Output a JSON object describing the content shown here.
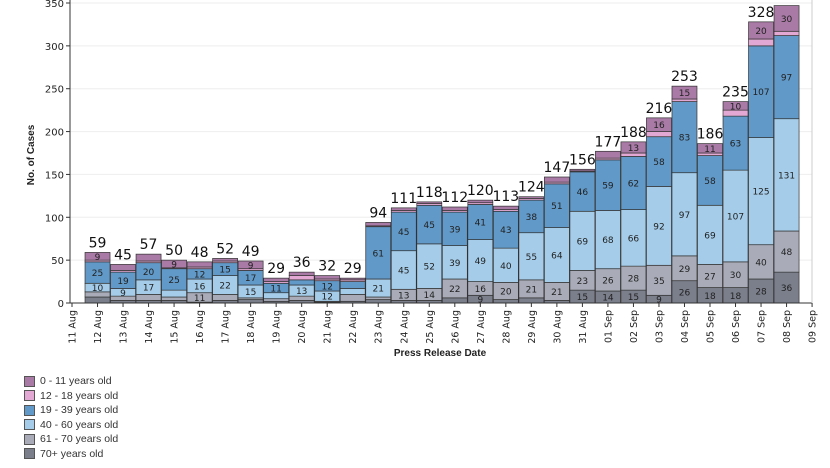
{
  "chart_data": {
    "type": "bar",
    "stacked": true,
    "title": "",
    "xlabel": "Press Release Date",
    "ylabel": "No. of Cases",
    "ylim": [
      0,
      350
    ],
    "yticks": [
      0,
      50,
      100,
      150,
      200,
      250,
      300,
      350
    ],
    "xtick_labels": [
      "11 Aug",
      "12 Aug",
      "13 Aug",
      "14 Aug",
      "15 Aug",
      "16 Aug",
      "17 Aug",
      "18 Aug",
      "19 Aug",
      "20 Aug",
      "21 Aug",
      "22 Aug",
      "23 Aug",
      "24 Aug",
      "25 Aug",
      "26 Aug",
      "27 Aug",
      "28 Aug",
      "29 Aug",
      "30 Aug",
      "31 Aug",
      "01 Sep",
      "02 Sep",
      "03 Sep",
      "04 Sep",
      "05 Sep",
      "06 Sep",
      "07 Sep",
      "08 Sep",
      "09 Sep"
    ],
    "categories": [
      "12 Aug",
      "13 Aug",
      "14 Aug",
      "15 Aug",
      "16 Aug",
      "17 Aug",
      "18 Aug",
      "19 Aug",
      "20 Aug",
      "21 Aug",
      "22 Aug",
      "23 Aug",
      "24 Aug",
      "25 Aug",
      "26 Aug",
      "27 Aug",
      "28 Aug",
      "29 Aug",
      "30 Aug",
      "31 Aug",
      "01 Sep",
      "02 Sep",
      "03 Sep",
      "04 Sep",
      "05 Sep",
      "06 Sep",
      "07 Sep",
      "08 Sep"
    ],
    "totals": [
      59,
      45,
      57,
      50,
      48,
      52,
      49,
      29,
      36,
      32,
      29,
      94,
      111,
      118,
      112,
      120,
      113,
      124,
      147,
      156,
      177,
      188,
      216,
      253,
      186,
      235,
      328,
      null
    ],
    "legend_position": "bottom-left",
    "series": [
      {
        "name": "70+ years old",
        "color": "#7b7f8c",
        "values": [
          7,
          3,
          3,
          3,
          1,
          3,
          4,
          2,
          3,
          1,
          2,
          4,
          3,
          3,
          6,
          9,
          4,
          6,
          3,
          15,
          14,
          15,
          9,
          26,
          18,
          18,
          28,
          36
        ]
      },
      {
        "name": "61 - 70 years old",
        "color": "#a9acb8",
        "values": [
          6,
          5,
          7,
          4,
          11,
          7,
          2,
          3,
          5,
          1,
          8,
          3,
          13,
          14,
          22,
          16,
          20,
          21,
          21,
          23,
          26,
          28,
          35,
          29,
          27,
          30,
          40,
          48
        ]
      },
      {
        "name": "40 - 60 years old",
        "color": "#a5cdea",
        "values": [
          10,
          9,
          17,
          8,
          16,
          22,
          15,
          7,
          13,
          12,
          7,
          21,
          45,
          52,
          39,
          49,
          40,
          55,
          64,
          69,
          68,
          66,
          92,
          97,
          69,
          107,
          125,
          131
        ]
      },
      {
        "name": "19 - 39 years old",
        "color": "#6199c8",
        "values": [
          25,
          19,
          20,
          25,
          12,
          15,
          17,
          11,
          6,
          12,
          8,
          61,
          45,
          45,
          39,
          41,
          43,
          38,
          51,
          46,
          59,
          62,
          58,
          83,
          58,
          63,
          107,
          97
        ]
      },
      {
        "name": "12 - 18 years old",
        "color": "#e3a9d4",
        "values": [
          2,
          2,
          2,
          1,
          2,
          2,
          2,
          2,
          5,
          2,
          2,
          1,
          2,
          2,
          2,
          2,
          2,
          2,
          2,
          1,
          2,
          4,
          6,
          3,
          3,
          7,
          8,
          5
        ]
      },
      {
        "name": "0 - 11 years old",
        "color": "#a97aa6",
        "values": [
          9,
          7,
          8,
          9,
          6,
          3,
          9,
          4,
          4,
          4,
          2,
          4,
          3,
          2,
          4,
          3,
          4,
          2,
          6,
          2,
          8,
          13,
          16,
          15,
          11,
          10,
          20,
          30
        ]
      }
    ]
  },
  "legend": {
    "items": [
      {
        "label": "0 - 11 years old",
        "color": "#a97aa6"
      },
      {
        "label": "12 - 18 years old",
        "color": "#e3a9d4"
      },
      {
        "label": "19 - 39 years old",
        "color": "#6199c8"
      },
      {
        "label": "40 - 60 years old",
        "color": "#a5cdea"
      },
      {
        "label": "61 - 70 years old",
        "color": "#a9acb8"
      },
      {
        "label": "70+ years old",
        "color": "#7b7f8c"
      }
    ]
  }
}
